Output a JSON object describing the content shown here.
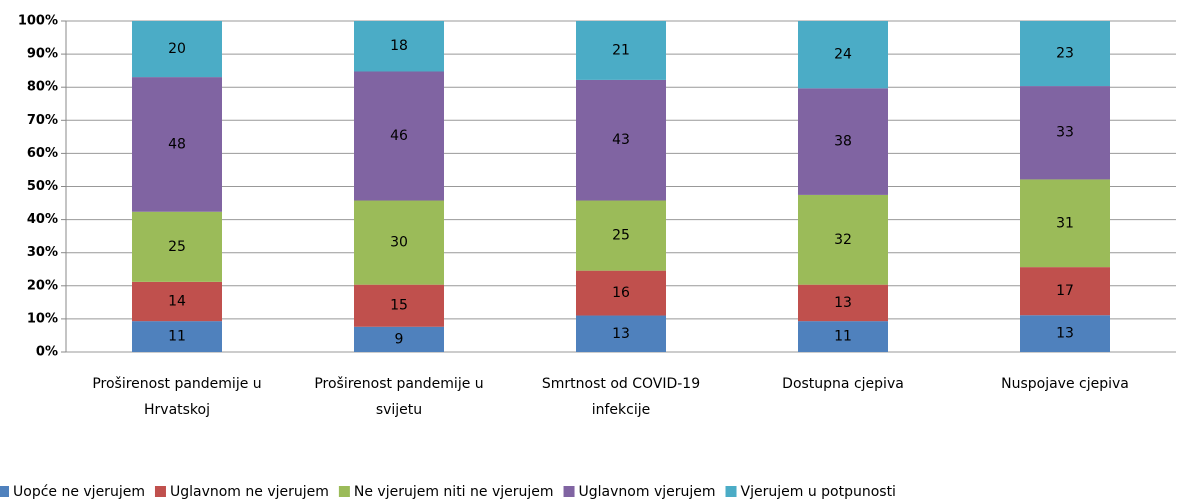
{
  "chart_data": {
    "type": "bar",
    "stacked": "percent",
    "categories": [
      "Proširenost pandemije u Hrvatskoj",
      "Proširenost pandemije u svijetu",
      "Smrtnost od COVID-19 infekcije",
      "Dostupna cjepiva",
      "Nuspojave cjepiva"
    ],
    "series": [
      {
        "name": "Uopće ne vjerujem",
        "color": "#4f81bd",
        "values": [
          11,
          9,
          13,
          11,
          13
        ]
      },
      {
        "name": "Uglavnom ne vjerujem",
        "color": "#c0504d",
        "values": [
          14,
          15,
          16,
          13,
          17
        ]
      },
      {
        "name": "Ne vjerujem niti ne vjerujem",
        "color": "#9bbb59",
        "values": [
          25,
          30,
          25,
          32,
          31
        ]
      },
      {
        "name": "Uglavnom vjerujem",
        "color": "#8064a2",
        "values": [
          48,
          46,
          43,
          38,
          33
        ]
      },
      {
        "name": "Vjerujem u potpunosti",
        "color": "#4bacc6",
        "values": [
          20,
          18,
          21,
          24,
          23
        ]
      }
    ],
    "ylim": [
      0,
      100
    ],
    "yticks": [
      {
        "value": 0,
        "label": "0%"
      },
      {
        "value": 10,
        "label": "10%"
      },
      {
        "value": 20,
        "label": "20%"
      },
      {
        "value": 30,
        "label": "30%"
      },
      {
        "value": 40,
        "label": "40%"
      },
      {
        "value": 50,
        "label": "50%"
      },
      {
        "value": 60,
        "label": "60%"
      },
      {
        "value": 70,
        "label": "70%"
      },
      {
        "value": 80,
        "label": "80%"
      },
      {
        "value": 90,
        "label": "90%"
      },
      {
        "value": 100,
        "label": "100%"
      }
    ],
    "grid": true,
    "legend": "bottom"
  }
}
